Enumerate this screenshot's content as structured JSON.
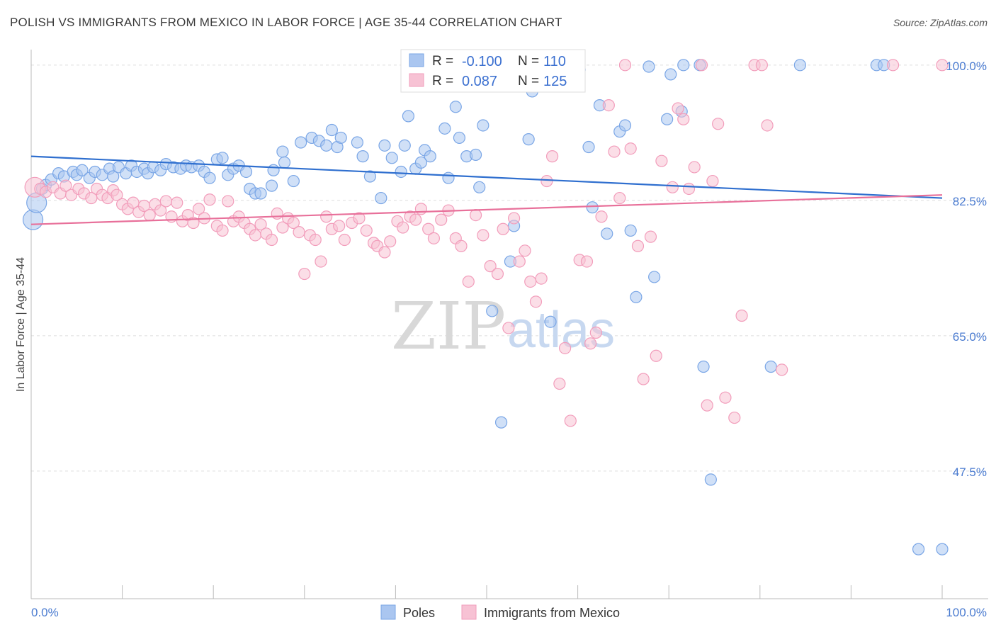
{
  "title": "POLISH VS IMMIGRANTS FROM MEXICO IN LABOR FORCE | AGE 35-44 CORRELATION CHART",
  "source": "Source: ZipAtlas.com",
  "watermark": {
    "zip": "ZIP",
    "atlas": "atlas"
  },
  "chart_data": {
    "type": "scatter",
    "ylabel": "In Labor Force | Age 35-44",
    "xlim": [
      0,
      100
    ],
    "ylim": [
      31,
      102
    ],
    "x_tick_labels": {
      "left": "0.0%",
      "right": "100.0%"
    },
    "y_ticks": [
      {
        "value": 100.0,
        "label": "100.0%"
      },
      {
        "value": 82.5,
        "label": "82.5%"
      },
      {
        "value": 65.0,
        "label": "65.0%"
      },
      {
        "value": 47.5,
        "label": "47.5%"
      }
    ],
    "grid": true,
    "legend_position": "bottom",
    "stats": [
      {
        "r_label": "R =",
        "r": "-0.100",
        "n_label": "N =",
        "n": "110"
      },
      {
        "r_label": "R =",
        "r": "0.087",
        "n_label": "N =",
        "n": "125"
      }
    ],
    "series": [
      {
        "name": "Poles",
        "color": "#7aa6e6",
        "fill": "#aac6f0",
        "line_color": "#2f6fcf",
        "trend": [
          [
            0,
            88.2
          ],
          [
            100,
            82.8
          ]
        ],
        "points": [
          [
            0.2,
            80.0
          ],
          [
            0.6,
            82.2
          ],
          [
            1.2,
            84.0
          ],
          [
            1.6,
            84.5
          ],
          [
            2.2,
            85.2
          ],
          [
            3.0,
            86.0
          ],
          [
            3.6,
            85.6
          ],
          [
            4.6,
            86.2
          ],
          [
            5.0,
            85.8
          ],
          [
            5.6,
            86.4
          ],
          [
            6.4,
            85.4
          ],
          [
            7.0,
            86.2
          ],
          [
            7.8,
            85.8
          ],
          [
            8.6,
            86.6
          ],
          [
            9.0,
            85.6
          ],
          [
            9.6,
            86.8
          ],
          [
            10.4,
            86.0
          ],
          [
            11.0,
            87.0
          ],
          [
            11.6,
            86.2
          ],
          [
            12.4,
            86.6
          ],
          [
            12.8,
            86.0
          ],
          [
            13.4,
            86.8
          ],
          [
            14.2,
            86.4
          ],
          [
            14.8,
            87.2
          ],
          [
            15.6,
            86.8
          ],
          [
            16.4,
            86.6
          ],
          [
            17.0,
            87.0
          ],
          [
            17.6,
            86.8
          ],
          [
            18.4,
            87.0
          ],
          [
            19.0,
            86.2
          ],
          [
            19.6,
            85.4
          ],
          [
            20.4,
            87.8
          ],
          [
            21.0,
            88.0
          ],
          [
            21.6,
            85.8
          ],
          [
            22.2,
            86.6
          ],
          [
            22.8,
            87.0
          ],
          [
            23.6,
            86.2
          ],
          [
            24.0,
            84.0
          ],
          [
            24.6,
            83.4
          ],
          [
            25.2,
            83.4
          ],
          [
            26.4,
            84.4
          ],
          [
            26.6,
            86.4
          ],
          [
            27.6,
            88.8
          ],
          [
            27.8,
            87.4
          ],
          [
            28.8,
            85.0
          ],
          [
            29.6,
            90.0
          ],
          [
            30.8,
            90.6
          ],
          [
            31.6,
            90.2
          ],
          [
            32.4,
            89.6
          ],
          [
            33.0,
            91.6
          ],
          [
            33.6,
            89.4
          ],
          [
            34.0,
            90.6
          ],
          [
            35.8,
            90.0
          ],
          [
            36.4,
            88.2
          ],
          [
            37.2,
            85.6
          ],
          [
            38.4,
            82.8
          ],
          [
            38.8,
            89.6
          ],
          [
            39.6,
            88.0
          ],
          [
            40.6,
            86.2
          ],
          [
            41.0,
            89.6
          ],
          [
            41.4,
            93.4
          ],
          [
            42.2,
            86.6
          ],
          [
            42.8,
            87.4
          ],
          [
            43.2,
            89.0
          ],
          [
            43.8,
            88.2
          ],
          [
            45.4,
            91.8
          ],
          [
            45.8,
            85.4
          ],
          [
            46.6,
            94.6
          ],
          [
            47.0,
            90.6
          ],
          [
            47.8,
            88.2
          ],
          [
            48.8,
            88.4
          ],
          [
            49.2,
            84.2
          ],
          [
            49.6,
            92.2
          ],
          [
            50.6,
            68.2
          ],
          [
            51.6,
            53.8
          ],
          [
            51.6,
            100.0
          ],
          [
            52.6,
            74.6
          ],
          [
            53.0,
            79.2
          ],
          [
            54.6,
            90.4
          ],
          [
            55.0,
            96.6
          ],
          [
            55.6,
            100.0
          ],
          [
            56.8,
            100.0
          ],
          [
            57.0,
            66.8
          ],
          [
            58.2,
            100.0
          ],
          [
            58.6,
            100.0
          ],
          [
            59.4,
            99.6
          ],
          [
            60.2,
            99.4
          ],
          [
            61.2,
            89.4
          ],
          [
            61.6,
            81.6
          ],
          [
            62.4,
            94.8
          ],
          [
            63.2,
            78.2
          ],
          [
            64.6,
            91.4
          ],
          [
            65.2,
            92.2
          ],
          [
            65.8,
            78.6
          ],
          [
            66.4,
            70.0
          ],
          [
            67.8,
            99.8
          ],
          [
            68.4,
            72.6
          ],
          [
            69.8,
            93.0
          ],
          [
            70.2,
            98.8
          ],
          [
            71.4,
            94.0
          ],
          [
            71.6,
            100.0
          ],
          [
            73.4,
            100.0
          ],
          [
            73.8,
            61.0
          ],
          [
            74.6,
            46.4
          ],
          [
            81.2,
            61.0
          ],
          [
            84.4,
            100.0
          ],
          [
            92.8,
            100.0
          ],
          [
            93.6,
            100.0
          ],
          [
            97.4,
            37.4
          ],
          [
            100.0,
            37.4
          ]
        ]
      },
      {
        "name": "Immigrants from Mexico",
        "color": "#f29dbb",
        "fill": "#f7c2d4",
        "line_color": "#e8709a",
        "trend": [
          [
            0,
            79.4
          ],
          [
            100,
            83.2
          ]
        ],
        "points": [
          [
            0.4,
            84.2
          ],
          [
            1.0,
            84.0
          ],
          [
            1.6,
            83.6
          ],
          [
            2.4,
            84.2
          ],
          [
            3.2,
            83.4
          ],
          [
            3.8,
            84.4
          ],
          [
            4.4,
            83.2
          ],
          [
            5.2,
            84.0
          ],
          [
            5.8,
            83.4
          ],
          [
            6.6,
            82.8
          ],
          [
            7.2,
            84.0
          ],
          [
            7.8,
            83.2
          ],
          [
            8.4,
            82.8
          ],
          [
            9.0,
            83.8
          ],
          [
            9.4,
            83.2
          ],
          [
            10.0,
            82.0
          ],
          [
            10.6,
            81.4
          ],
          [
            11.2,
            82.2
          ],
          [
            11.8,
            81.0
          ],
          [
            12.4,
            81.8
          ],
          [
            13.0,
            80.6
          ],
          [
            13.6,
            82.0
          ],
          [
            14.2,
            81.2
          ],
          [
            14.8,
            82.4
          ],
          [
            15.4,
            80.4
          ],
          [
            16.0,
            82.2
          ],
          [
            16.6,
            79.8
          ],
          [
            17.2,
            80.6
          ],
          [
            17.8,
            79.6
          ],
          [
            18.4,
            81.4
          ],
          [
            19.0,
            80.2
          ],
          [
            19.6,
            82.6
          ],
          [
            20.4,
            79.2
          ],
          [
            21.0,
            78.6
          ],
          [
            21.6,
            82.4
          ],
          [
            22.2,
            79.8
          ],
          [
            22.8,
            80.4
          ],
          [
            23.4,
            79.6
          ],
          [
            24.0,
            78.8
          ],
          [
            24.6,
            78.0
          ],
          [
            25.2,
            79.4
          ],
          [
            25.8,
            78.2
          ],
          [
            26.4,
            77.4
          ],
          [
            27.0,
            80.8
          ],
          [
            27.6,
            79.0
          ],
          [
            28.2,
            80.2
          ],
          [
            28.8,
            79.6
          ],
          [
            29.4,
            78.4
          ],
          [
            30.0,
            73.0
          ],
          [
            30.6,
            78.0
          ],
          [
            31.2,
            77.4
          ],
          [
            31.8,
            74.6
          ],
          [
            32.4,
            80.4
          ],
          [
            33.0,
            78.8
          ],
          [
            33.8,
            79.2
          ],
          [
            34.4,
            77.4
          ],
          [
            35.2,
            79.6
          ],
          [
            36.0,
            80.2
          ],
          [
            36.8,
            78.6
          ],
          [
            37.6,
            77.0
          ],
          [
            38.0,
            76.6
          ],
          [
            38.8,
            75.8
          ],
          [
            39.4,
            77.2
          ],
          [
            40.2,
            79.8
          ],
          [
            40.8,
            79.0
          ],
          [
            41.6,
            80.4
          ],
          [
            42.2,
            80.0
          ],
          [
            42.8,
            81.4
          ],
          [
            43.6,
            78.8
          ],
          [
            44.2,
            77.6
          ],
          [
            45.0,
            80.0
          ],
          [
            45.8,
            81.2
          ],
          [
            46.6,
            77.6
          ],
          [
            47.2,
            76.6
          ],
          [
            48.0,
            72.0
          ],
          [
            48.8,
            80.6
          ],
          [
            49.6,
            78.0
          ],
          [
            50.4,
            74.0
          ],
          [
            51.2,
            73.0
          ],
          [
            51.8,
            78.8
          ],
          [
            52.4,
            66.0
          ],
          [
            53.0,
            80.2
          ],
          [
            53.6,
            74.6
          ],
          [
            54.2,
            76.0
          ],
          [
            54.8,
            72.0
          ],
          [
            55.4,
            69.4
          ],
          [
            56.0,
            72.4
          ],
          [
            56.6,
            85.0
          ],
          [
            57.2,
            88.2
          ],
          [
            58.0,
            58.8
          ],
          [
            58.6,
            63.4
          ],
          [
            59.2,
            54.0
          ],
          [
            60.2,
            74.8
          ],
          [
            61.0,
            74.6
          ],
          [
            61.4,
            64.0
          ],
          [
            62.0,
            65.4
          ],
          [
            62.6,
            80.4
          ],
          [
            63.4,
            94.8
          ],
          [
            64.0,
            88.8
          ],
          [
            64.6,
            82.8
          ],
          [
            65.2,
            100.0
          ],
          [
            65.8,
            89.2
          ],
          [
            66.6,
            76.6
          ],
          [
            67.2,
            59.4
          ],
          [
            68.0,
            77.8
          ],
          [
            68.6,
            62.4
          ],
          [
            69.2,
            87.6
          ],
          [
            70.4,
            84.2
          ],
          [
            71.0,
            94.4
          ],
          [
            71.6,
            93.0
          ],
          [
            72.2,
            84.0
          ],
          [
            72.8,
            86.8
          ],
          [
            73.6,
            100.0
          ],
          [
            74.2,
            56.0
          ],
          [
            74.8,
            85.0
          ],
          [
            75.4,
            92.4
          ],
          [
            76.2,
            57.0
          ],
          [
            77.2,
            54.4
          ],
          [
            78.0,
            67.6
          ],
          [
            79.4,
            100.0
          ],
          [
            80.2,
            100.0
          ],
          [
            80.8,
            92.2
          ],
          [
            82.4,
            60.6
          ],
          [
            94.6,
            100.0
          ],
          [
            100.0,
            100.0
          ]
        ]
      }
    ]
  }
}
